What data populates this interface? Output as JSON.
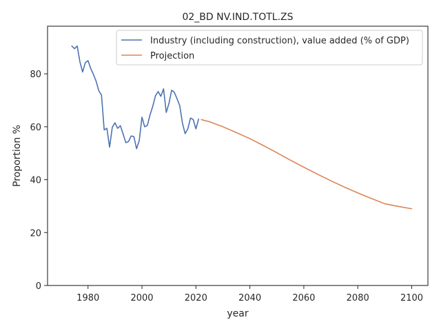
{
  "chart_data": {
    "type": "line",
    "title": "02_BD NV.IND.TOTL.ZS",
    "xlabel": "year",
    "ylabel": "Proportion %",
    "xlim": [
      1965,
      2106
    ],
    "ylim": [
      0,
      98
    ],
    "xticks": [
      1980,
      2000,
      2020,
      2040,
      2060,
      2080,
      2100
    ],
    "yticks": [
      0,
      20,
      40,
      60,
      80
    ],
    "grid": false,
    "legend_position": "top-right",
    "series": [
      {
        "name": "Industry (including construction), value added (% of GDP)",
        "color": "#4c72b0",
        "x": [
          1974,
          1975,
          1976,
          1977,
          1978,
          1979,
          1980,
          1981,
          1982,
          1983,
          1984,
          1985,
          1986,
          1987,
          1988,
          1989,
          1990,
          1991,
          1992,
          1993,
          1994,
          1995,
          1996,
          1997,
          1998,
          1999,
          2000,
          2001,
          2002,
          2003,
          2004,
          2005,
          2006,
          2007,
          2008,
          2009,
          2010,
          2011,
          2012,
          2013,
          2014,
          2015,
          2016,
          2017,
          2018,
          2019,
          2020,
          2021
        ],
        "y": [
          90.5,
          89.5,
          90.5,
          84.5,
          80.7,
          84.2,
          85.0,
          82.0,
          79.8,
          77.2,
          73.6,
          72.0,
          58.8,
          59.4,
          52.3,
          59.8,
          61.5,
          59.4,
          60.4,
          57.3,
          54.0,
          54.4,
          56.5,
          56.3,
          51.7,
          54.8,
          63.6,
          60.0,
          60.5,
          64.5,
          67.7,
          71.7,
          73.3,
          71.5,
          74.3,
          65.4,
          68.8,
          73.8,
          73.0,
          70.6,
          68.0,
          61.4,
          57.4,
          59.2,
          63.3,
          62.7,
          59.2,
          62.9
        ]
      },
      {
        "name": "Projection",
        "color": "#dd8452",
        "x": [
          2022,
          2025,
          2030,
          2035,
          2040,
          2045,
          2050,
          2055,
          2060,
          2065,
          2070,
          2075,
          2080,
          2085,
          2090,
          2095,
          2100
        ],
        "y": [
          62.7,
          61.9,
          60.0,
          57.8,
          55.5,
          52.9,
          50.2,
          47.4,
          44.7,
          42.1,
          39.6,
          37.2,
          35.0,
          32.9,
          30.9,
          29.9,
          29.0
        ]
      }
    ]
  }
}
